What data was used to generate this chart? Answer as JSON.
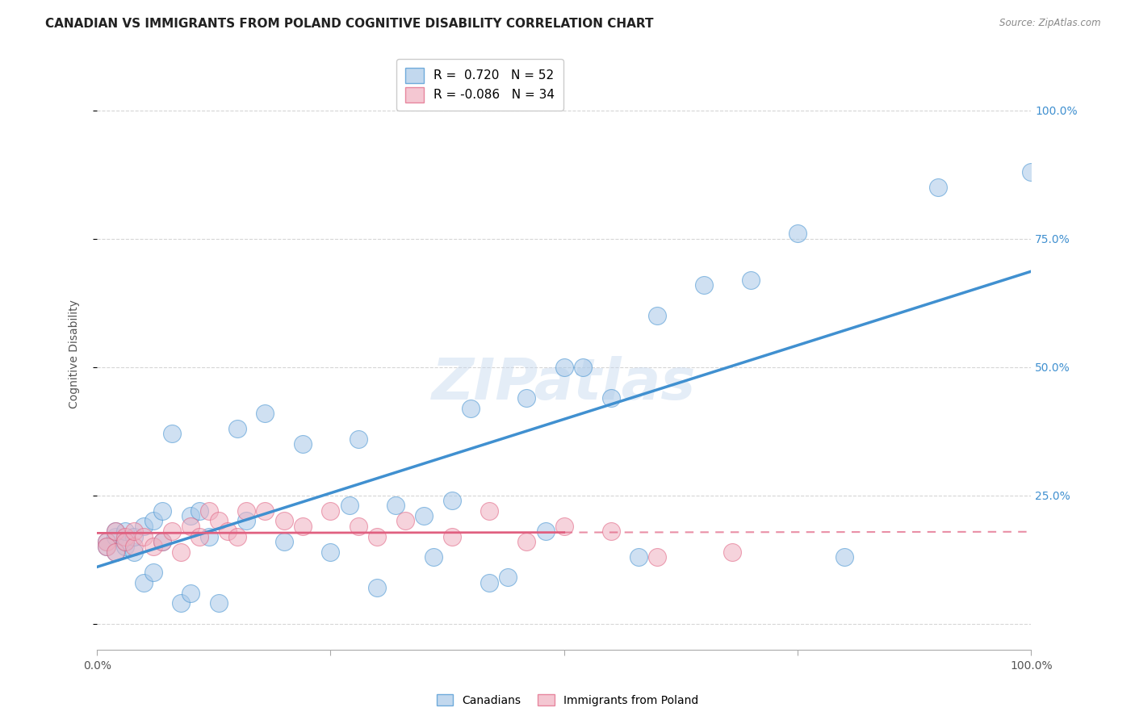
{
  "title": "CANADIAN VS IMMIGRANTS FROM POLAND COGNITIVE DISABILITY CORRELATION CHART",
  "source": "Source: ZipAtlas.com",
  "ylabel": "Cognitive Disability",
  "xlim": [
    0,
    1.0
  ],
  "ylim": [
    -0.05,
    1.1
  ],
  "yticks": [
    0.0,
    0.25,
    0.5,
    0.75,
    1.0
  ],
  "ytick_labels": [
    "",
    "25.0%",
    "50.0%",
    "75.0%",
    "100.0%"
  ],
  "xticks": [
    0.0,
    0.25,
    0.5,
    0.75,
    1.0
  ],
  "xtick_labels": [
    "0.0%",
    "",
    "",
    "",
    "100.0%"
  ],
  "canadian_R": 0.72,
  "canadian_N": 52,
  "poland_R": -0.086,
  "poland_N": 34,
  "canadian_color": "#a8c8e8",
  "poland_color": "#f0b0c0",
  "canadian_line_color": "#4090d0",
  "poland_line_color": "#e06080",
  "canada_x": [
    0.01,
    0.01,
    0.02,
    0.02,
    0.02,
    0.03,
    0.03,
    0.03,
    0.04,
    0.04,
    0.05,
    0.05,
    0.06,
    0.06,
    0.07,
    0.07,
    0.08,
    0.09,
    0.1,
    0.1,
    0.11,
    0.12,
    0.13,
    0.15,
    0.16,
    0.18,
    0.2,
    0.22,
    0.25,
    0.27,
    0.28,
    0.3,
    0.32,
    0.35,
    0.36,
    0.38,
    0.4,
    0.42,
    0.44,
    0.46,
    0.48,
    0.5,
    0.52,
    0.55,
    0.58,
    0.6,
    0.65,
    0.7,
    0.75,
    0.8,
    0.9,
    1.0
  ],
  "canada_y": [
    0.16,
    0.15,
    0.17,
    0.14,
    0.18,
    0.15,
    0.16,
    0.18,
    0.14,
    0.17,
    0.19,
    0.08,
    0.2,
    0.1,
    0.16,
    0.22,
    0.37,
    0.04,
    0.21,
    0.06,
    0.22,
    0.17,
    0.04,
    0.38,
    0.2,
    0.41,
    0.16,
    0.35,
    0.14,
    0.23,
    0.36,
    0.07,
    0.23,
    0.21,
    0.13,
    0.24,
    0.42,
    0.08,
    0.09,
    0.44,
    0.18,
    0.5,
    0.5,
    0.44,
    0.13,
    0.6,
    0.66,
    0.67,
    0.76,
    0.13,
    0.85,
    0.88
  ],
  "poland_x": [
    0.01,
    0.01,
    0.02,
    0.02,
    0.03,
    0.03,
    0.04,
    0.04,
    0.05,
    0.06,
    0.07,
    0.08,
    0.09,
    0.1,
    0.11,
    0.12,
    0.13,
    0.14,
    0.15,
    0.16,
    0.18,
    0.2,
    0.22,
    0.25,
    0.28,
    0.3,
    0.33,
    0.38,
    0.42,
    0.46,
    0.5,
    0.55,
    0.6,
    0.68
  ],
  "poland_y": [
    0.16,
    0.15,
    0.18,
    0.14,
    0.17,
    0.16,
    0.15,
    0.18,
    0.17,
    0.15,
    0.16,
    0.18,
    0.14,
    0.19,
    0.17,
    0.22,
    0.2,
    0.18,
    0.17,
    0.22,
    0.22,
    0.2,
    0.19,
    0.22,
    0.19,
    0.17,
    0.2,
    0.17,
    0.22,
    0.16,
    0.19,
    0.18,
    0.13,
    0.14
  ],
  "watermark_text": "ZIPatlas",
  "background_color": "#ffffff",
  "grid_color": "#cccccc",
  "title_fontsize": 11,
  "axis_label_fontsize": 10,
  "tick_fontsize": 10,
  "right_tick_color": "#4090d0"
}
